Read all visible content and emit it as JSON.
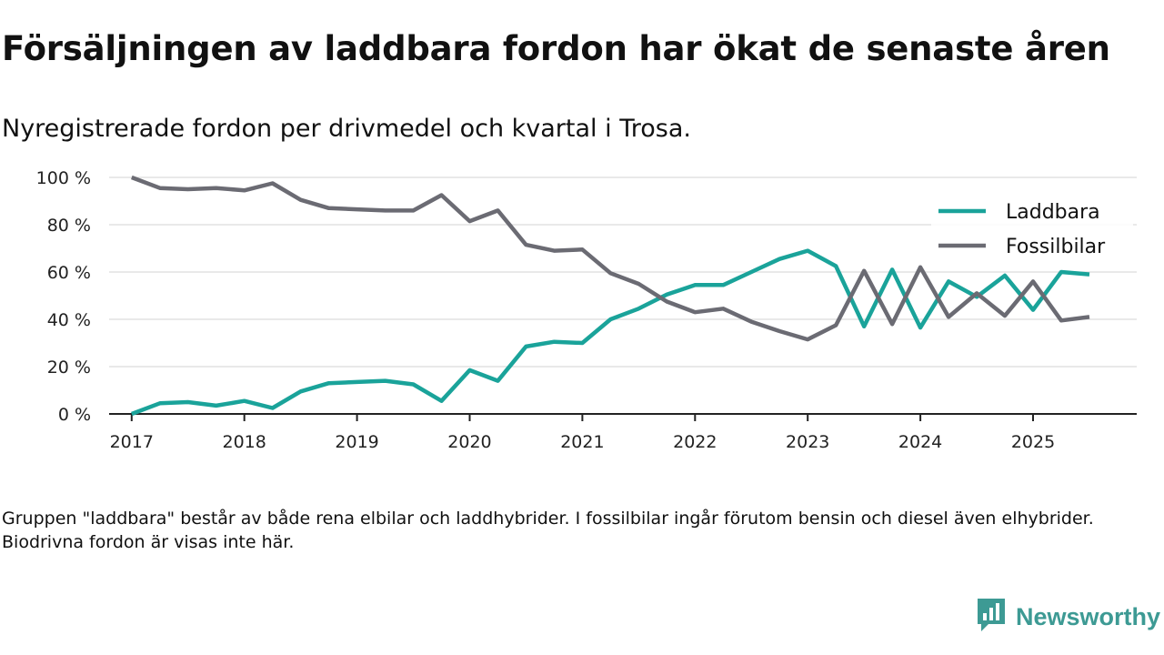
{
  "title": "Försäljningen av laddbara fordon har ökat de senaste åren",
  "subtitle": "Nyregistrerade fordon per drivmedel och kvartal i Trosa.",
  "footnote": "Gruppen \"laddbara\" består av både rena elbilar och laddhybrider. I fossilbilar ingår förutom bensin och diesel även elhybrider. Biodrivna fordon är visas inte här.",
  "brand": {
    "name": "Newsworthy",
    "icon": "newsworthy-logo-icon"
  },
  "chart_data": {
    "type": "line",
    "title": "Försäljningen av laddbara fordon har ökat de senaste åren",
    "subtitle": "Nyregistrerade fordon per drivmedel och kvartal i Trosa.",
    "xlabel": "",
    "ylabel": "",
    "x": [
      2017.0,
      2017.25,
      2017.5,
      2017.75,
      2018.0,
      2018.25,
      2018.5,
      2018.75,
      2019.0,
      2019.25,
      2019.5,
      2019.75,
      2020.0,
      2020.25,
      2020.5,
      2020.75,
      2021.0,
      2021.25,
      2021.5,
      2021.75,
      2022.0,
      2022.25,
      2022.5,
      2022.75,
      2023.0,
      2023.25,
      2023.5,
      2023.75,
      2024.0,
      2024.25,
      2024.5,
      2024.75,
      2025.0,
      2025.25,
      2025.5
    ],
    "xticks": [
      2017,
      2018,
      2019,
      2020,
      2021,
      2022,
      2023,
      2024,
      2025
    ],
    "xtick_labels": [
      "2017",
      "2018",
      "2019",
      "2020",
      "2021",
      "2022",
      "2023",
      "2024",
      "2025"
    ],
    "xlim": [
      2016.8,
      2025.92
    ],
    "ylim": [
      0,
      100
    ],
    "yticks": [
      0,
      20,
      40,
      60,
      80,
      100
    ],
    "ytick_labels": [
      "0 %",
      "20 %",
      "40 %",
      "60 %",
      "80 %",
      "100 %"
    ],
    "grid": true,
    "legend_position": "top-right",
    "series": [
      {
        "name": "Laddbara",
        "color": "#1aa39a",
        "values": [
          0,
          4.5,
          5,
          3.5,
          5.5,
          2.5,
          9.5,
          13,
          13.5,
          14,
          12.5,
          5.5,
          18.5,
          14,
          28.5,
          30.5,
          30,
          40,
          44.5,
          50.5,
          54.5,
          54.5,
          60,
          65.5,
          69,
          62.5,
          37,
          61,
          36.5,
          56,
          49.5,
          58.5,
          44,
          60,
          59
        ]
      },
      {
        "name": "Fossilbilar",
        "color": "#6b6b73",
        "values": [
          100,
          95.5,
          95,
          95.5,
          94.5,
          97.5,
          90.5,
          87,
          86.5,
          86,
          86,
          92.5,
          81.5,
          86,
          71.5,
          69,
          69.5,
          59.5,
          55,
          47.5,
          43,
          44.5,
          39,
          35,
          31.5,
          37.5,
          60.5,
          38,
          62,
          41,
          51,
          41.5,
          56,
          39.5,
          41
        ]
      }
    ]
  }
}
